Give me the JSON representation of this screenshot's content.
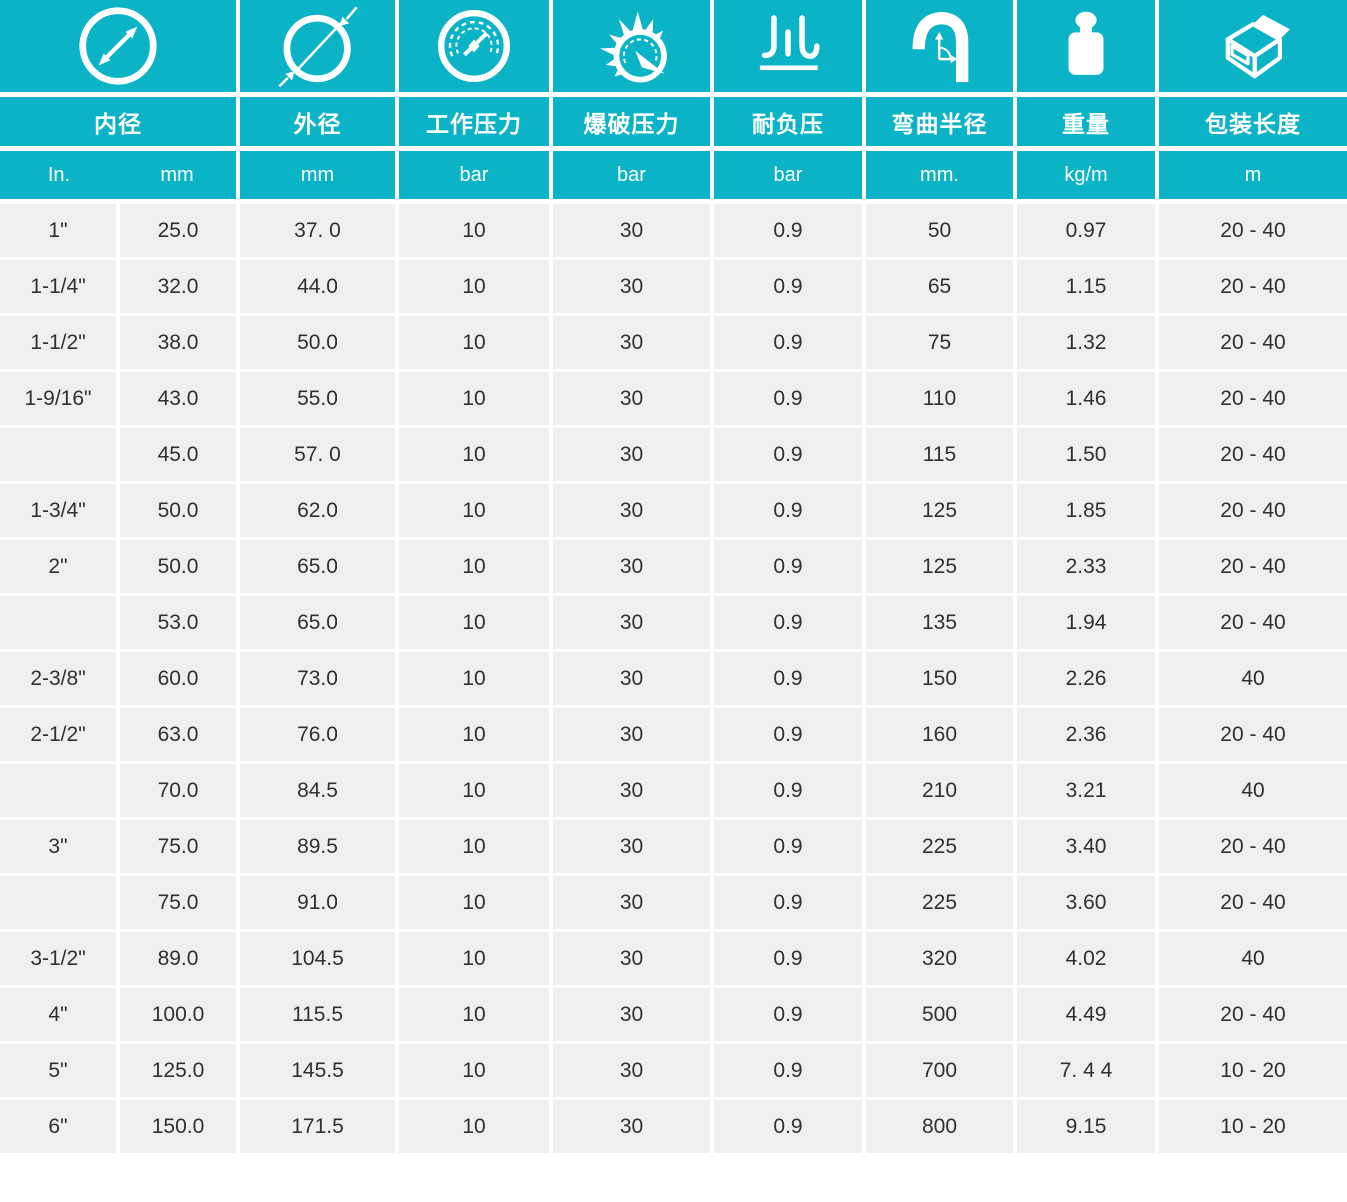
{
  "colors": {
    "accent": "#0ab3c5",
    "row_bg": "#efefef",
    "header_text": "#ffffff",
    "data_text": "#303030"
  },
  "header": {
    "labels": [
      "内径",
      "外径",
      "工作压力",
      "爆破压力",
      "耐负压",
      "弯曲半径",
      "重量",
      "包装长度"
    ],
    "units": [
      "In.",
      "mm",
      "mm",
      "bar",
      "bar",
      "bar",
      "mm.",
      "kg/m",
      "m"
    ],
    "icons": [
      "inner-diameter-icon",
      "outer-diameter-icon",
      "pressure-gauge-icon",
      "burst-pressure-icon",
      "vacuum-resistance-icon",
      "bend-radius-icon",
      "weight-icon",
      "package-box-icon"
    ]
  },
  "chart_data": {
    "type": "table",
    "columns": [
      "内径 In.",
      "内径 mm",
      "外径 mm",
      "工作压力 bar",
      "爆破压力 bar",
      "耐负压 bar",
      "弯曲半径 mm.",
      "重量 kg/m",
      "包装长度 m"
    ],
    "rows": [
      [
        "1\"",
        "25.0",
        "37. 0",
        "10",
        "30",
        "0.9",
        "50",
        "0.97",
        "20 - 40"
      ],
      [
        "1-1/4\"",
        "32.0",
        "44.0",
        "10",
        "30",
        "0.9",
        "65",
        "1.15",
        "20 - 40"
      ],
      [
        "1-1/2\"",
        "38.0",
        "50.0",
        "10",
        "30",
        "0.9",
        "75",
        "1.32",
        "20 - 40"
      ],
      [
        "1-9/16\"",
        "43.0",
        "55.0",
        "10",
        "30",
        "0.9",
        "110",
        "1.46",
        "20 - 40"
      ],
      [
        "",
        "45.0",
        "57. 0",
        "10",
        "30",
        "0.9",
        "115",
        "1.50",
        "20 - 40"
      ],
      [
        "1-3/4\"",
        "50.0",
        "62.0",
        "10",
        "30",
        "0.9",
        "125",
        "1.85",
        "20 - 40"
      ],
      [
        "2\"",
        "50.0",
        "65.0",
        "10",
        "30",
        "0.9",
        "125",
        "2.33",
        "20 - 40"
      ],
      [
        "",
        "53.0",
        "65.0",
        "10",
        "30",
        "0.9",
        "135",
        "1.94",
        "20 - 40"
      ],
      [
        "2-3/8\"",
        "60.0",
        "73.0",
        "10",
        "30",
        "0.9",
        "150",
        "2.26",
        "40"
      ],
      [
        "2-1/2\"",
        "63.0",
        "76.0",
        "10",
        "30",
        "0.9",
        "160",
        "2.36",
        "20 - 40"
      ],
      [
        "",
        "70.0",
        "84.5",
        "10",
        "30",
        "0.9",
        "210",
        "3.21",
        "40"
      ],
      [
        "3\"",
        "75.0",
        "89.5",
        "10",
        "30",
        "0.9",
        "225",
        "3.40",
        "20 - 40"
      ],
      [
        "",
        "75.0",
        "91.0",
        "10",
        "30",
        "0.9",
        "225",
        "3.60",
        "20 - 40"
      ],
      [
        "3-1/2\"",
        "89.0",
        "104.5",
        "10",
        "30",
        "0.9",
        "320",
        "4.02",
        "40"
      ],
      [
        "4\"",
        "100.0",
        "115.5",
        "10",
        "30",
        "0.9",
        "500",
        "4.49",
        "20 - 40"
      ],
      [
        "5\"",
        "125.0",
        "145.5",
        "10",
        "30",
        "0.9",
        "700",
        "7. 4 4",
        "10 - 20"
      ],
      [
        "6\"",
        "150.0",
        "171.5",
        "10",
        "30",
        "0.9",
        "800",
        "9.15",
        "10 - 20"
      ]
    ]
  }
}
